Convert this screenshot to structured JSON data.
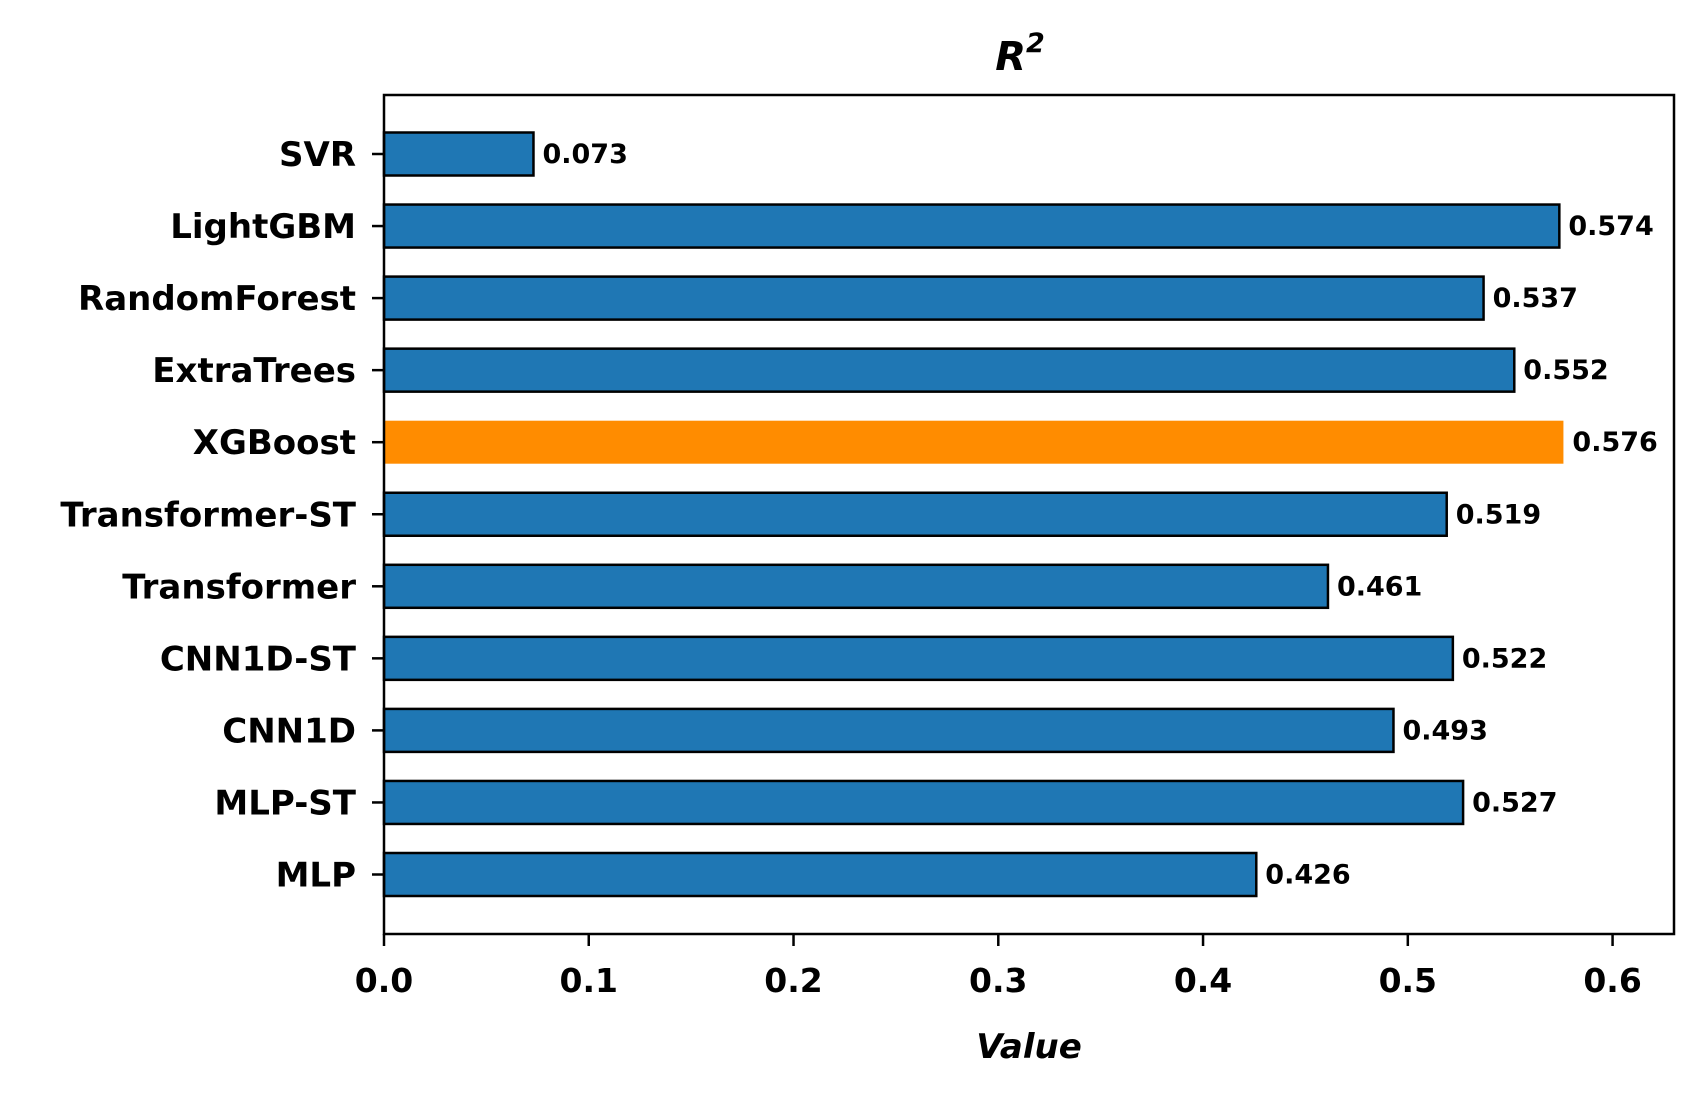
{
  "chart_data": {
    "type": "bar",
    "orientation": "horizontal",
    "title_base": "R",
    "title_sup": "2",
    "xlabel": "Value",
    "ylabel": "",
    "xlim": [
      0,
      0.63
    ],
    "xticks": [
      "0.0",
      "0.1",
      "0.2",
      "0.3",
      "0.4",
      "0.5",
      "0.6"
    ],
    "grid": false,
    "categories": [
      "SVR",
      "LightGBM",
      "RandomForest",
      "ExtraTrees",
      "XGBoost",
      "Transformer-ST",
      "Transformer",
      "CNN1D-ST",
      "CNN1D",
      "MLP-ST",
      "MLP"
    ],
    "values": [
      0.073,
      0.574,
      0.537,
      0.552,
      0.576,
      0.519,
      0.461,
      0.522,
      0.493,
      0.527,
      0.426
    ],
    "value_labels": [
      "0.073",
      "0.574",
      "0.537",
      "0.552",
      "0.576",
      "0.519",
      "0.461",
      "0.522",
      "0.493",
      "0.527",
      "0.426"
    ],
    "highlight_category": "XGBoost",
    "colors": {
      "bar": "#1f77b4",
      "highlight": "#ff8c00",
      "edge": "#000000"
    }
  }
}
